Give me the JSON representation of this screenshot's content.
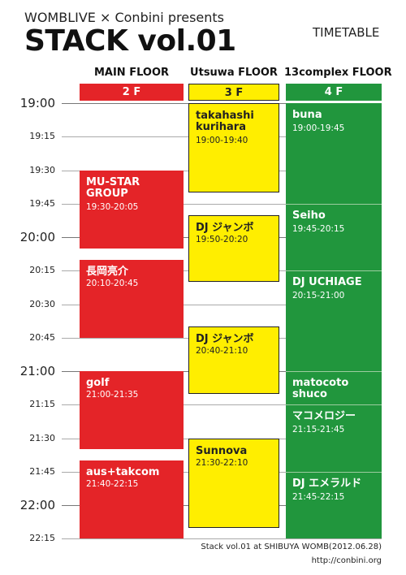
{
  "header": {
    "presenter": "WOMBLIVE × Conbini presents",
    "title": "STACK vol.01",
    "subtitle": "TIMETABLE"
  },
  "floors": [
    {
      "name": "MAIN FLOOR",
      "badge": "2 F",
      "color": "#e42428"
    },
    {
      "name": "Utsuwa FLOOR",
      "badge": "3 F",
      "color": "#ffee00"
    },
    {
      "name": "13complex FLOOR",
      "badge": "4 F",
      "color": "#21963d"
    }
  ],
  "time_axis": [
    "19:00",
    "19:15",
    "19:30",
    "19:45",
    "20:00",
    "20:15",
    "20:30",
    "20:45",
    "21:00",
    "21:15",
    "21:30",
    "21:45",
    "22:00",
    "22:15"
  ],
  "main_floor": [
    {
      "act": "MU-STAR\nGROUP",
      "time": "19:30-20:05"
    },
    {
      "act": "長岡亮介",
      "time": "20:10-20:45"
    },
    {
      "act": "golf",
      "time": "21:00-21:35"
    },
    {
      "act": "aus+takcom",
      "time": "21:40-22:15"
    }
  ],
  "utsuwa_floor": [
    {
      "act": "takahashi\nkurihara",
      "time": "19:00-19:40"
    },
    {
      "act": "DJ ジャンボ",
      "time": "19:50-20:20"
    },
    {
      "act": "DJ ジャンボ",
      "time": "20:40-21:10"
    },
    {
      "act": "Sunnova",
      "time": "21:30-22:10"
    }
  ],
  "complex_floor": [
    {
      "act": "buna",
      "time": "19:00-19:45"
    },
    {
      "act": "Seiho",
      "time": "19:45-20:15"
    },
    {
      "act": "DJ UCHIAGE",
      "time": "20:15-21:00"
    },
    {
      "act": "matocoto\nshuco",
      "time": ""
    },
    {
      "act": "マコメロジー",
      "time": "21:15-21:45"
    },
    {
      "act": "DJ エメラルド",
      "time": "21:45-22:15"
    }
  ],
  "footer": {
    "credit": "Stack vol.01 at SHIBUYA WOMB(2012.06.28)",
    "url": "http://conbini.org"
  }
}
